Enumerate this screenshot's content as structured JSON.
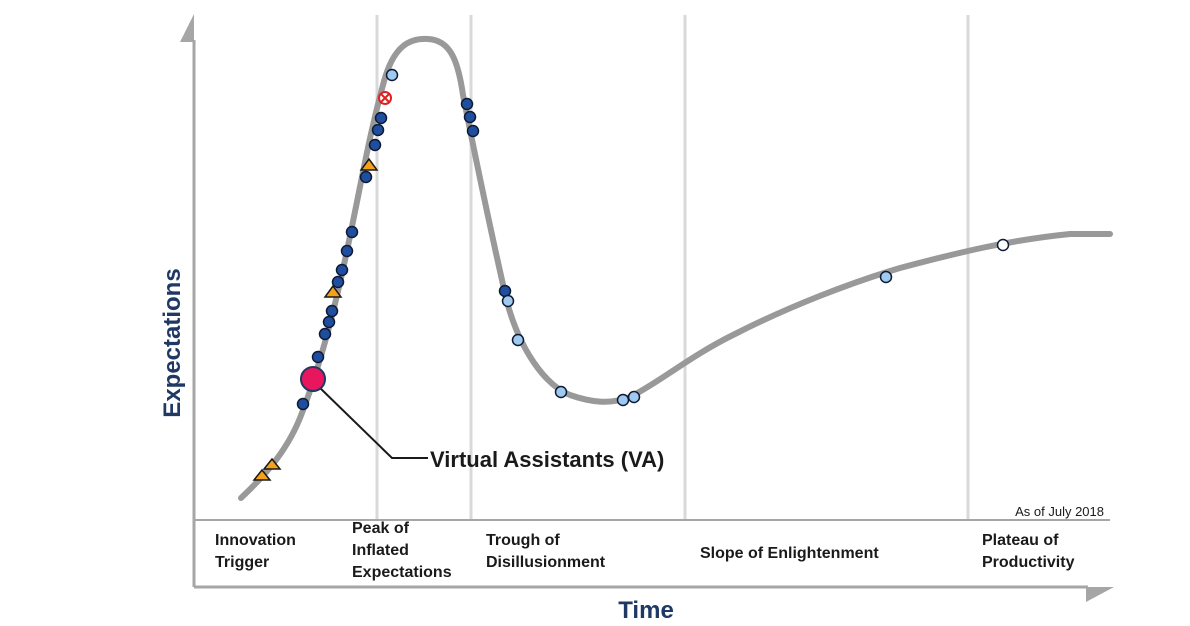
{
  "axes": {
    "y_title": "Expectations",
    "x_title": "Time"
  },
  "as_of": "As of July 2018",
  "phases": [
    {
      "id": "innovation-trigger",
      "lines": [
        "Innovation",
        "Trigger"
      ]
    },
    {
      "id": "peak",
      "lines": [
        "Peak of",
        "Inflated",
        "Expectations"
      ]
    },
    {
      "id": "trough",
      "lines": [
        "Trough of",
        "Disillusionment"
      ]
    },
    {
      "id": "slope",
      "lines": [
        "Slope of Enlightenment"
      ]
    },
    {
      "id": "plateau",
      "lines": [
        "Plateau of",
        "Productivity"
      ]
    }
  ],
  "highlight": {
    "label": "Virtual Assistants (VA)",
    "color": "#e8175d"
  },
  "colors": {
    "curve": "#999999",
    "axis": "#a6a6a6",
    "axis_title": "#1f3864",
    "dark_blue": "#1f4e9e",
    "light_blue": "#9fc9ef",
    "white": "#ffffff",
    "triangle": "#f5a21a",
    "obsolete": "#e02020",
    "divider": "#d9d9d9"
  },
  "markers": {
    "triangle": 4,
    "dark_blue": 21,
    "light_blue": 7,
    "white": 2,
    "obsolete": 1
  }
}
